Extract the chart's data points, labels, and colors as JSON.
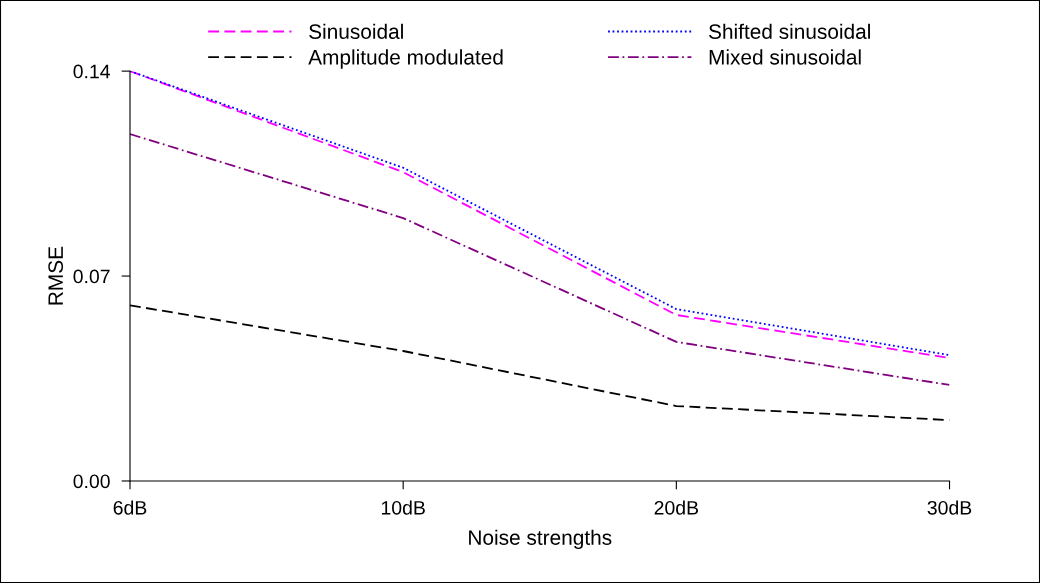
{
  "chart_data": {
    "type": "line",
    "xlabel": "Noise strengths",
    "ylabel": "RMSE",
    "categories": [
      "6dB",
      "10dB",
      "20dB",
      "30dB"
    ],
    "series": [
      {
        "name": "Sinusoidal",
        "color": "#ff00ff",
        "line_style": "dashed",
        "values": [
          0.14,
          0.1055,
          0.0567,
          0.042
        ]
      },
      {
        "name": "Shifted sinusoidal",
        "color": "#0000ff",
        "line_style": "dotted",
        "values": [
          0.14,
          0.107,
          0.0587,
          0.043
        ]
      },
      {
        "name": "Amplitude modulated",
        "color": "#000000",
        "line_style": "dashed",
        "values": [
          0.06,
          0.0444,
          0.0256,
          0.0208
        ]
      },
      {
        "name": "Mixed sinusoidal",
        "color": "#800080",
        "line_style": "dashdot",
        "values": [
          0.1185,
          0.0898,
          0.0475,
          0.0328
        ]
      }
    ],
    "ylim": [
      0,
      0.14
    ],
    "yticks": [
      {
        "value": 0,
        "label": "0.00"
      },
      {
        "value": 0.07,
        "label": "0.07"
      },
      {
        "value": 0.14,
        "label": "0.14"
      }
    ],
    "grid": false,
    "legend": "top",
    "marker": "none"
  }
}
